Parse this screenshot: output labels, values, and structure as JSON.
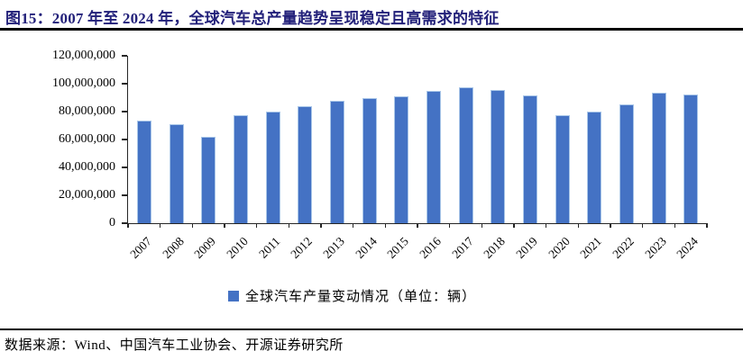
{
  "figure": {
    "title": "图15：2007 年至 2024 年，全球汽车总产量趋势呈现稳定且高需求的特征",
    "source_note": "数据来源：Wind、中国汽车工业协会、开源证券研究所"
  },
  "colors": {
    "bar": "#4472C4",
    "bar_border": "#A9C6E8",
    "title_text": "#23217A",
    "axis": "#262626",
    "rule": "#000000"
  },
  "chart_data": {
    "type": "bar",
    "title": "",
    "xlabel": "",
    "ylabel": "",
    "categories": [
      "2007",
      "2008",
      "2009",
      "2010",
      "2011",
      "2012",
      "2013",
      "2014",
      "2015",
      "2016",
      "2017",
      "2018",
      "2019",
      "2020",
      "2021",
      "2022",
      "2023",
      "2024"
    ],
    "values": [
      73300000,
      70700000,
      61800000,
      77600000,
      79900000,
      84200000,
      87600000,
      89800000,
      91000000,
      95000000,
      97300000,
      95600000,
      91800000,
      77700000,
      80100000,
      85000000,
      93500000,
      92500000
    ],
    "ylim": [
      0,
      120000000
    ],
    "yticks": [
      0,
      20000000,
      40000000,
      60000000,
      80000000,
      100000000,
      120000000
    ],
    "ytick_labels": [
      "0",
      "20,000,000",
      "40,000,000",
      "60,000,000",
      "80,000,000",
      "100,000,000",
      "120,000,000"
    ],
    "grid": false,
    "legend_position": "bottom",
    "legend_label": "全球汽车产量变动情况（单位：辆）"
  }
}
